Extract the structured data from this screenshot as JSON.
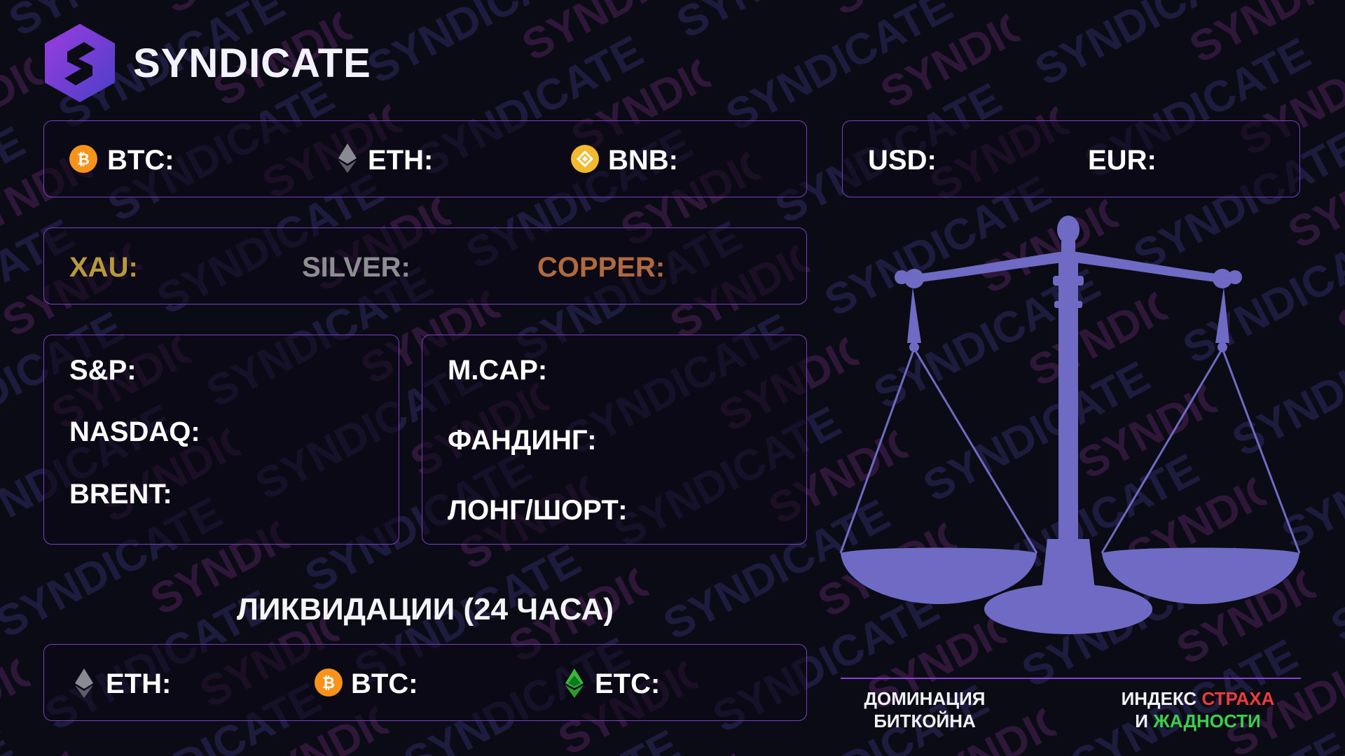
{
  "brand": {
    "name": "SYNDICATE",
    "logo_glyph": "S"
  },
  "crypto_row": [
    {
      "icon": "bitcoin-coin",
      "label": "BTC:"
    },
    {
      "icon": "ethereum-diamond",
      "label": "ETH:"
    },
    {
      "icon": "binance-coin",
      "label": "BNB:"
    }
  ],
  "fiat_row": [
    {
      "label": "USD:"
    },
    {
      "label": "EUR:"
    }
  ],
  "metals_row": [
    {
      "label": "XAU:",
      "color": "#b79a3c"
    },
    {
      "label": "SILVER:",
      "color": "#8e8e92"
    },
    {
      "label": "COPPER:",
      "color": "#b06a3e"
    }
  ],
  "markets": [
    "S&P:",
    "NASDAQ:",
    "BRENT:"
  ],
  "derivatives": [
    "M.CAP:",
    "ФАНДИНГ:",
    "ЛОНГ/ШОРТ:"
  ],
  "liquidations": {
    "title": "ЛИКВИДАЦИИ (24 ЧАСА)",
    "items": [
      {
        "icon": "ethereum-diamond",
        "label": "ETH:"
      },
      {
        "icon": "bitcoin-coin",
        "label": "BTC:"
      },
      {
        "icon": "ethereum-classic",
        "label": "ETC:"
      }
    ]
  },
  "scale": {
    "left_caption_line1": "ДОМИНАЦИЯ",
    "left_caption_line2": "БИТКОЙНА",
    "right_caption_prefix": "ИНДЕКС ",
    "right_caption_fear": "СТРАХА",
    "right_caption_and": "И ",
    "right_caption_greed": "ЖАДНОСТИ"
  },
  "colors": {
    "accent": "#8b3fd6",
    "border": "#7a3fc4",
    "scale": "#6f6bc4",
    "fear": "#ee3b3b",
    "greed": "#3bd04a",
    "bitcoin": "#f7931a",
    "binance": "#f3ba2f"
  }
}
